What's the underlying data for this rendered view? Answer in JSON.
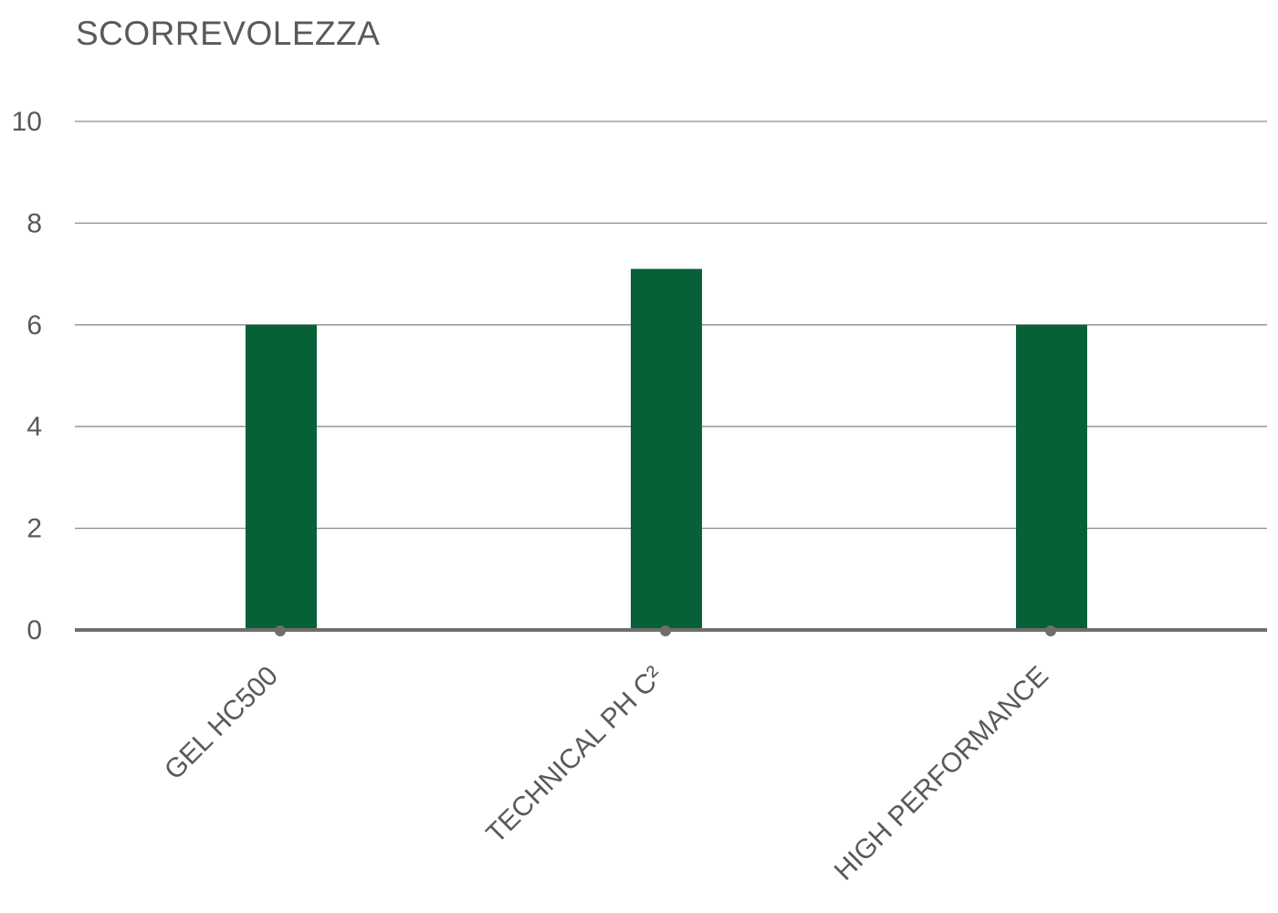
{
  "chart_data": {
    "type": "bar",
    "title": "SCORREVOLEZZA",
    "categories": [
      "GEL HC500",
      "TECHNICAL PH C²",
      "HIGH PERFORMANCE"
    ],
    "values": [
      6.0,
      7.1,
      6.0
    ],
    "ylim": [
      0,
      10
    ],
    "yticks": [
      0,
      2,
      4,
      6,
      8,
      10
    ],
    "xlabel": "",
    "ylabel": "",
    "grid": true,
    "legend": "none",
    "colors": {
      "bar": "#066137",
      "grid": "#8c8c8c",
      "axis": "#6e6e6e",
      "text": "#595959"
    }
  }
}
